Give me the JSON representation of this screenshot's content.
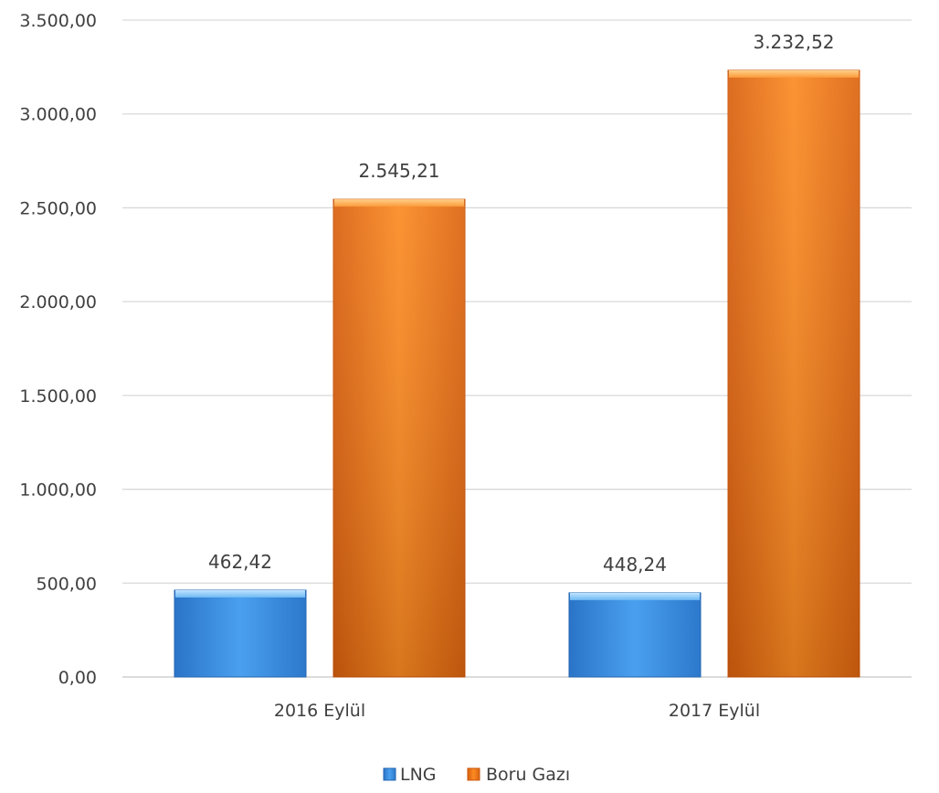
{
  "chart_data": {
    "type": "bar",
    "categories": [
      "2016 Eylül",
      "2017 Eylül"
    ],
    "series": [
      {
        "name": "LNG",
        "values": [
          462.42,
          448.24
        ],
        "labels": [
          "462,42",
          "448,24"
        ],
        "color": "#3b8fe0"
      },
      {
        "name": "Boru Gazı",
        "values": [
          2545.21,
          3232.52
        ],
        "labels": [
          "2.545,21",
          "3.232,52"
        ],
        "color": "#f07a1a"
      }
    ],
    "ylim": [
      0,
      3500
    ],
    "yticks": [
      0,
      500,
      1000,
      1500,
      2000,
      2500,
      3000,
      3500
    ],
    "ytick_labels": [
      "0,00",
      "500,00",
      "1.000,00",
      "1.500,00",
      "2.000,00",
      "2.500,00",
      "3.000,00",
      "3.500,00"
    ],
    "grid": true,
    "legend_position": "bottom",
    "title": "",
    "xlabel": "",
    "ylabel": ""
  }
}
